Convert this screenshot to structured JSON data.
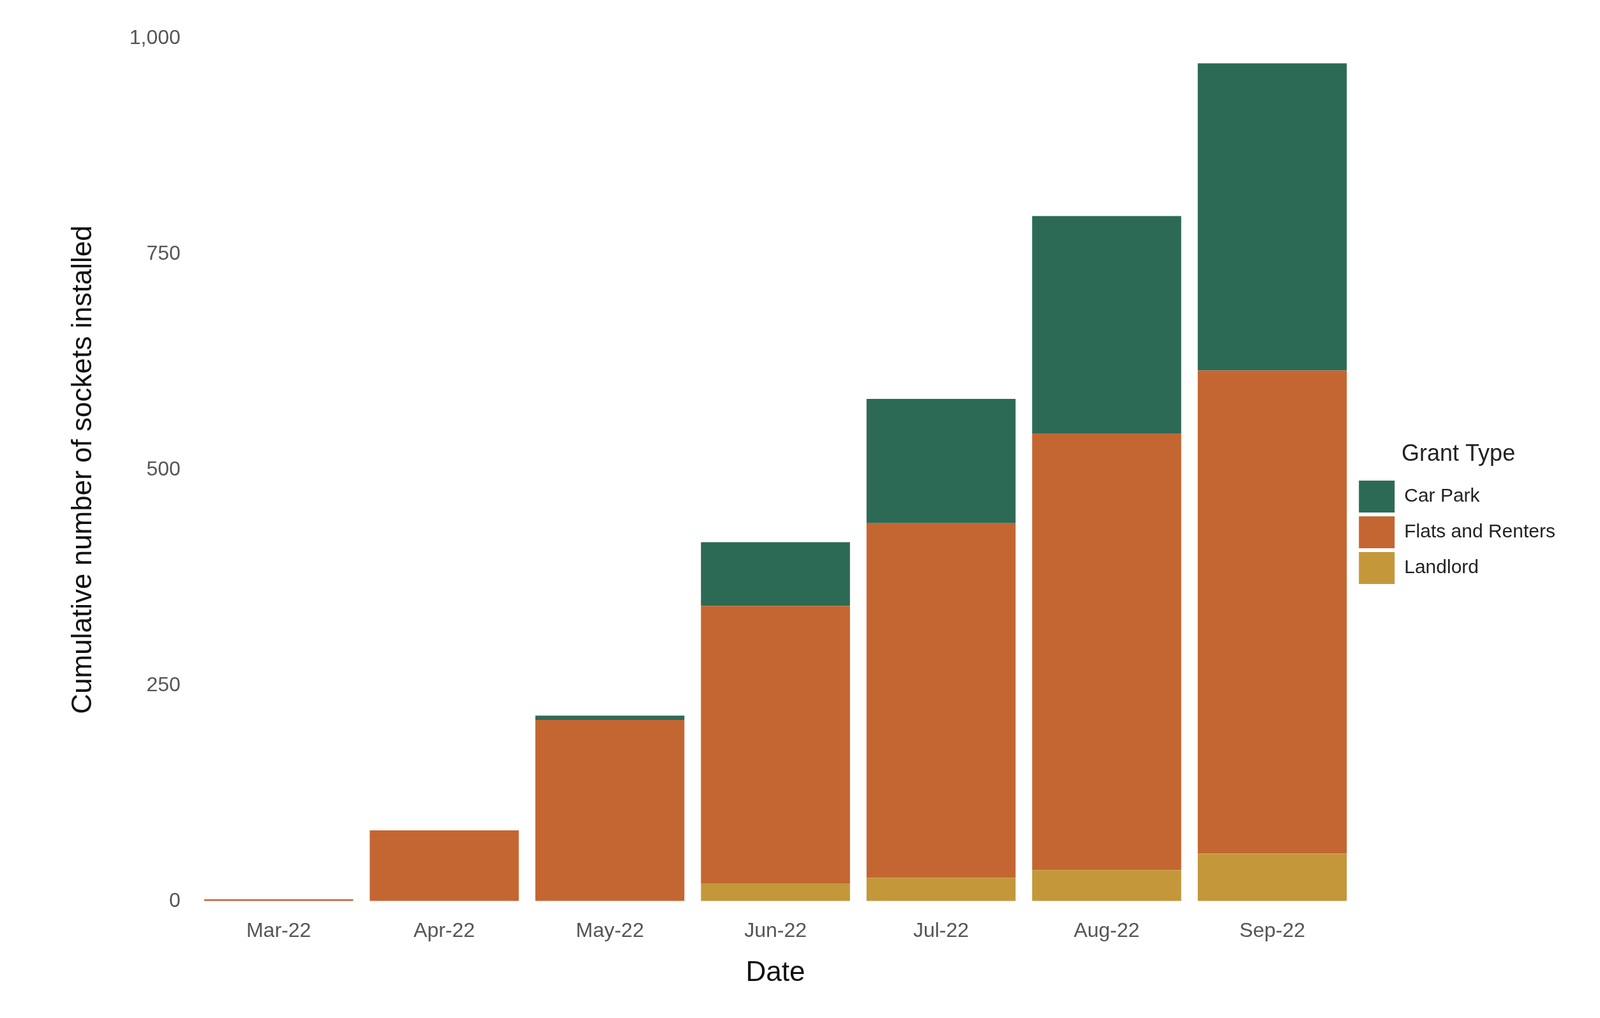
{
  "chart_data": {
    "type": "bar",
    "x_label": "Date",
    "y_label": "Cumulative number of sockets installed",
    "legend_title": "Grant Type",
    "categories": [
      "Mar-22",
      "Apr-22",
      "May-22",
      "Jun-22",
      "Jul-22",
      "Aug-22",
      "Sep-22"
    ],
    "series": [
      {
        "name": "Car Park",
        "color": "#2d6a56",
        "values": [
          0,
          0,
          5,
          74,
          144,
          252,
          356
        ]
      },
      {
        "name": "Flats and Renters",
        "color": "#c46632",
        "values": [
          2,
          82,
          210,
          322,
          411,
          506,
          560
        ]
      },
      {
        "name": "Landlord",
        "color": "#c4973a",
        "values": [
          0,
          0,
          0,
          20,
          27,
          36,
          55
        ]
      }
    ],
    "stacked": true,
    "ylim": [
      0,
      1000
    ],
    "yticks": [
      0,
      250,
      500,
      750,
      {
        "value": 1000,
        "label": "1,000"
      }
    ],
    "grid": false,
    "legend": "right"
  }
}
